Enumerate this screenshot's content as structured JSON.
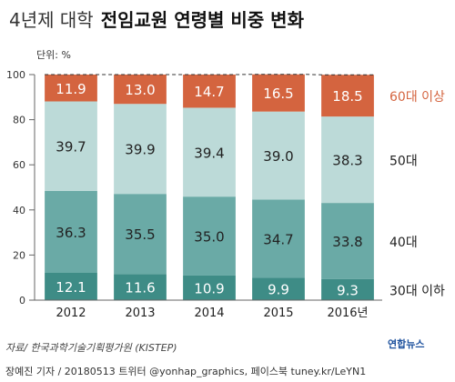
{
  "header": {
    "title_light": "4년제 대학",
    "title_bold": "전임교원 연령별 비중 변화"
  },
  "chart_data": {
    "type": "bar",
    "stacked": true,
    "unit_label": "단위: %",
    "categories": [
      "2012",
      "2013",
      "2014",
      "2015",
      "2016년"
    ],
    "ylim": [
      0,
      100
    ],
    "yticks": [
      0,
      20,
      40,
      60,
      80,
      100
    ],
    "series": [
      {
        "name": "30대 이하",
        "values": [
          12.1,
          11.6,
          10.9,
          9.9,
          9.3
        ],
        "color": "#3e8c86",
        "label_color": "#ffffff"
      },
      {
        "name": "40대",
        "values": [
          36.3,
          35.5,
          35.0,
          34.7,
          33.8
        ],
        "color": "#6aaaa6",
        "label_color": "#222222"
      },
      {
        "name": "50대",
        "values": [
          39.7,
          39.9,
          39.4,
          39.0,
          38.3
        ],
        "color": "#bcdad8",
        "label_color": "#222222"
      },
      {
        "name": "60대 이상",
        "values": [
          11.9,
          13.0,
          14.7,
          16.5,
          18.5
        ],
        "color": "#d4643f",
        "label_color": "#ffffff"
      }
    ],
    "value_labels": [
      [
        "12.1",
        "11.6",
        "10.9",
        "9.9",
        "9.3"
      ],
      [
        "36.3",
        "35.5",
        "35.0",
        "34.7",
        "33.8"
      ],
      [
        "39.7",
        "39.9",
        "39.4",
        "39.0",
        "38.3"
      ],
      [
        "11.9",
        "13.0",
        "14.7",
        "16.5",
        "18.5"
      ]
    ],
    "legend_placement": "right, beside each stack segment",
    "dashed_boundary_between": [
      "50대",
      "60대 이상"
    ]
  },
  "footer": {
    "source": "자료/ 한국과학기술기획평가원 (KISTEP)",
    "credit": "장예진 기자 / 20180513 트위터 @yonhap_graphics, 페이스북 tuney.kr/LeYN1",
    "logo": "연합뉴스"
  }
}
